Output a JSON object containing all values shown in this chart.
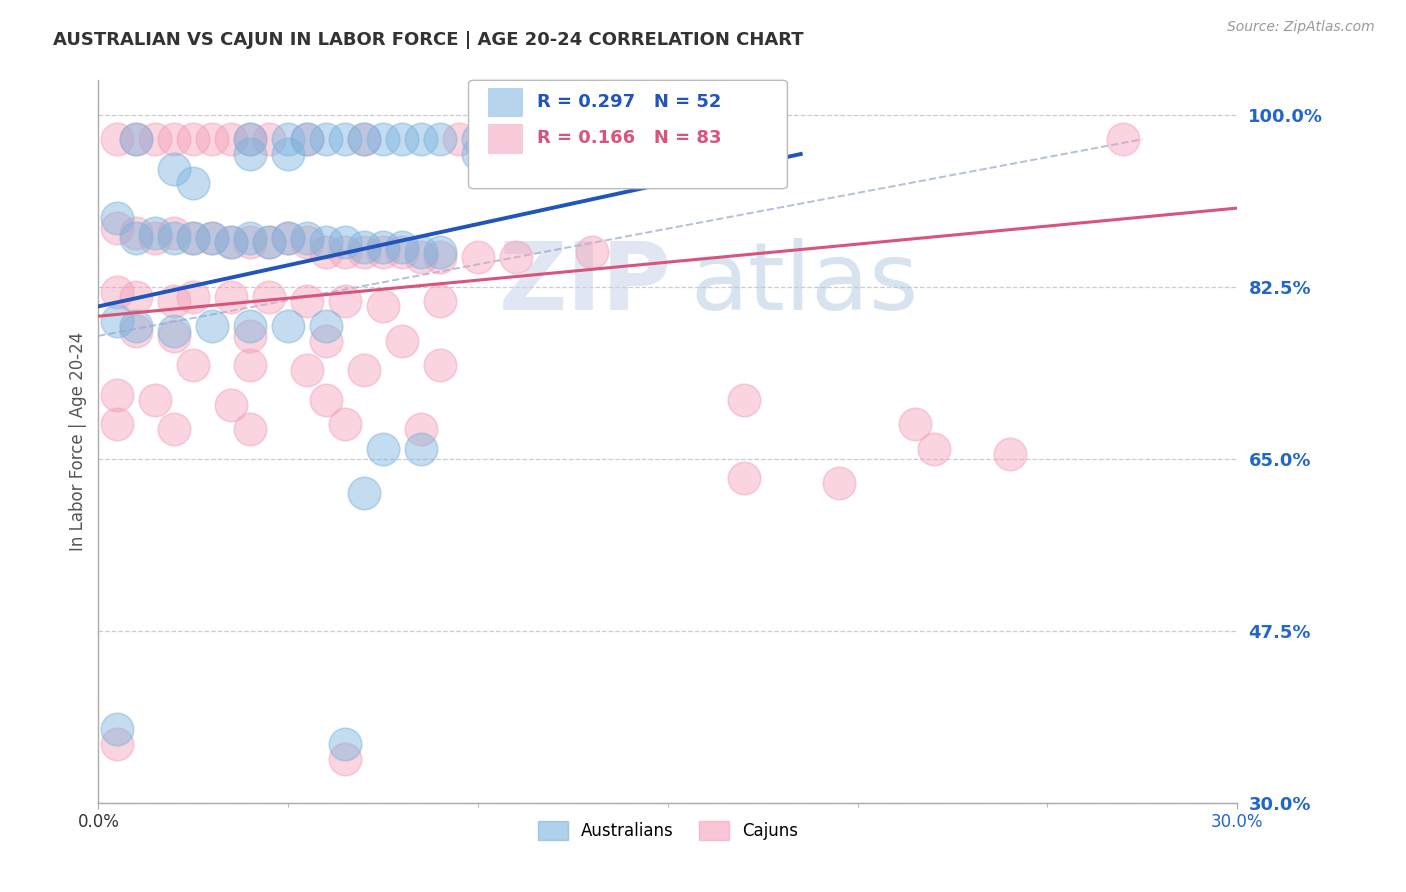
{
  "title": "AUSTRALIAN VS CAJUN IN LABOR FORCE | AGE 20-24 CORRELATION CHART",
  "source": "Source: ZipAtlas.com",
  "ylabel": "In Labor Force | Age 20-24",
  "xlim": [
    0.0,
    0.3
  ],
  "ylim": [
    0.3,
    1.035
  ],
  "yticks": [
    1.0,
    0.825,
    0.65,
    0.475,
    0.3
  ],
  "ytick_labels": [
    "100.0%",
    "82.5%",
    "65.0%",
    "47.5%",
    "30.0%"
  ],
  "watermark_zip": "ZIP",
  "watermark_atlas": "atlas",
  "australian_color": "#7ab3de",
  "cajun_color": "#f4a0b8",
  "australian_R": 0.297,
  "australian_N": 52,
  "cajun_R": 0.166,
  "cajun_N": 83,
  "grid_color": "#cccccc",
  "background_color": "#ffffff",
  "australian_scatter": [
    [
      0.01,
      0.975
    ],
    [
      0.02,
      0.945
    ],
    [
      0.025,
      0.93
    ],
    [
      0.04,
      0.975
    ],
    [
      0.04,
      0.96
    ],
    [
      0.05,
      0.975
    ],
    [
      0.05,
      0.96
    ],
    [
      0.055,
      0.975
    ],
    [
      0.06,
      0.975
    ],
    [
      0.065,
      0.975
    ],
    [
      0.07,
      0.975
    ],
    [
      0.075,
      0.975
    ],
    [
      0.08,
      0.975
    ],
    [
      0.085,
      0.975
    ],
    [
      0.09,
      0.975
    ],
    [
      0.1,
      0.975
    ],
    [
      0.1,
      0.96
    ],
    [
      0.11,
      0.975
    ],
    [
      0.115,
      0.975
    ],
    [
      0.13,
      0.975
    ],
    [
      0.005,
      0.895
    ],
    [
      0.01,
      0.875
    ],
    [
      0.015,
      0.88
    ],
    [
      0.02,
      0.875
    ],
    [
      0.025,
      0.875
    ],
    [
      0.03,
      0.875
    ],
    [
      0.035,
      0.87
    ],
    [
      0.04,
      0.875
    ],
    [
      0.045,
      0.87
    ],
    [
      0.05,
      0.875
    ],
    [
      0.055,
      0.875
    ],
    [
      0.06,
      0.87
    ],
    [
      0.065,
      0.87
    ],
    [
      0.07,
      0.865
    ],
    [
      0.075,
      0.865
    ],
    [
      0.08,
      0.865
    ],
    [
      0.085,
      0.86
    ],
    [
      0.09,
      0.86
    ],
    [
      0.005,
      0.79
    ],
    [
      0.01,
      0.785
    ],
    [
      0.02,
      0.78
    ],
    [
      0.03,
      0.785
    ],
    [
      0.04,
      0.785
    ],
    [
      0.05,
      0.785
    ],
    [
      0.06,
      0.785
    ],
    [
      0.075,
      0.66
    ],
    [
      0.085,
      0.66
    ],
    [
      0.07,
      0.615
    ],
    [
      0.005,
      0.375
    ],
    [
      0.065,
      0.36
    ]
  ],
  "cajun_scatter": [
    [
      0.005,
      0.975
    ],
    [
      0.01,
      0.975
    ],
    [
      0.015,
      0.975
    ],
    [
      0.02,
      0.975
    ],
    [
      0.025,
      0.975
    ],
    [
      0.03,
      0.975
    ],
    [
      0.035,
      0.975
    ],
    [
      0.04,
      0.975
    ],
    [
      0.045,
      0.975
    ],
    [
      0.055,
      0.975
    ],
    [
      0.07,
      0.975
    ],
    [
      0.095,
      0.975
    ],
    [
      0.14,
      0.975
    ],
    [
      0.27,
      0.975
    ],
    [
      0.005,
      0.885
    ],
    [
      0.01,
      0.88
    ],
    [
      0.015,
      0.875
    ],
    [
      0.02,
      0.88
    ],
    [
      0.025,
      0.875
    ],
    [
      0.03,
      0.875
    ],
    [
      0.035,
      0.87
    ],
    [
      0.04,
      0.87
    ],
    [
      0.045,
      0.87
    ],
    [
      0.05,
      0.875
    ],
    [
      0.055,
      0.87
    ],
    [
      0.06,
      0.86
    ],
    [
      0.065,
      0.86
    ],
    [
      0.07,
      0.86
    ],
    [
      0.075,
      0.86
    ],
    [
      0.08,
      0.86
    ],
    [
      0.085,
      0.855
    ],
    [
      0.09,
      0.855
    ],
    [
      0.1,
      0.855
    ],
    [
      0.11,
      0.855
    ],
    [
      0.13,
      0.86
    ],
    [
      0.005,
      0.82
    ],
    [
      0.01,
      0.815
    ],
    [
      0.02,
      0.81
    ],
    [
      0.025,
      0.815
    ],
    [
      0.035,
      0.815
    ],
    [
      0.045,
      0.815
    ],
    [
      0.055,
      0.81
    ],
    [
      0.065,
      0.81
    ],
    [
      0.075,
      0.805
    ],
    [
      0.09,
      0.81
    ],
    [
      0.01,
      0.78
    ],
    [
      0.02,
      0.775
    ],
    [
      0.04,
      0.775
    ],
    [
      0.06,
      0.77
    ],
    [
      0.08,
      0.77
    ],
    [
      0.025,
      0.745
    ],
    [
      0.04,
      0.745
    ],
    [
      0.055,
      0.74
    ],
    [
      0.07,
      0.74
    ],
    [
      0.09,
      0.745
    ],
    [
      0.005,
      0.715
    ],
    [
      0.015,
      0.71
    ],
    [
      0.035,
      0.705
    ],
    [
      0.06,
      0.71
    ],
    [
      0.005,
      0.685
    ],
    [
      0.02,
      0.68
    ],
    [
      0.04,
      0.68
    ],
    [
      0.065,
      0.685
    ],
    [
      0.085,
      0.68
    ],
    [
      0.17,
      0.71
    ],
    [
      0.215,
      0.685
    ],
    [
      0.22,
      0.66
    ],
    [
      0.24,
      0.655
    ],
    [
      0.17,
      0.63
    ],
    [
      0.195,
      0.625
    ],
    [
      0.005,
      0.36
    ],
    [
      0.065,
      0.345
    ]
  ],
  "australian_trend_x": [
    0.0,
    0.185
  ],
  "australian_trend_y": [
    0.805,
    0.96
  ],
  "cajun_trend_x": [
    0.0,
    0.3
  ],
  "cajun_trend_y": [
    0.795,
    0.905
  ],
  "dotted_line_x": [
    0.0,
    0.275
  ],
  "dotted_line_y": [
    0.775,
    0.975
  ],
  "legend_text_aus": "R = 0.297   N = 52",
  "legend_text_caj": "R = 0.166   N = 83"
}
